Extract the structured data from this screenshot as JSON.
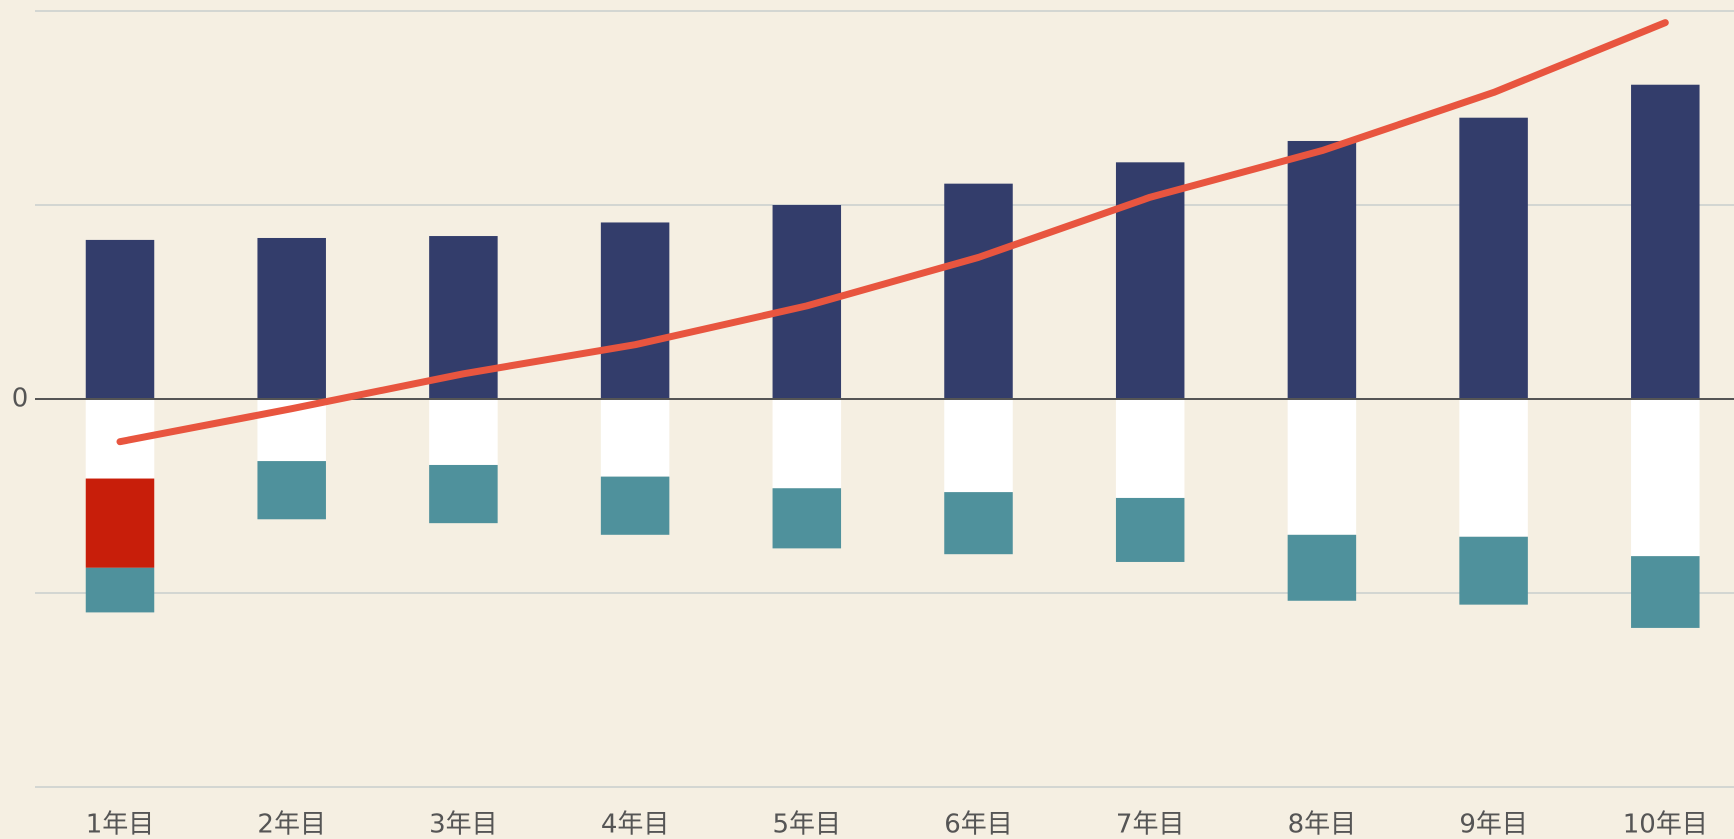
{
  "chart_data": {
    "type": "bar",
    "categories": [
      "1年目",
      "2年目",
      "3年目",
      "4年目",
      "5年目",
      "6年目",
      "7年目",
      "8年目",
      "9年目",
      "10年目"
    ],
    "series": [
      {
        "color": "#333d6b",
        "values": [
          0.82,
          0.83,
          0.84,
          0.91,
          1.0,
          1.11,
          1.22,
          1.33,
          1.45,
          1.62
        ]
      },
      {
        "color": "#ffffff",
        "values": [
          -0.41,
          -0.32,
          -0.34,
          -0.4,
          -0.46,
          -0.48,
          -0.51,
          -0.7,
          -0.71,
          -0.81
        ]
      },
      {
        "color": "#c81e0a",
        "values": [
          -0.46,
          0,
          0,
          0,
          0,
          0,
          0,
          0,
          0,
          0
        ]
      },
      {
        "color": "#4f919c",
        "values": [
          -0.23,
          -0.3,
          -0.3,
          -0.3,
          -0.31,
          -0.32,
          -0.33,
          -0.34,
          -0.35,
          -0.37
        ]
      },
      {
        "type": "line",
        "color": "#e8553f",
        "values": [
          -0.22,
          -0.05,
          0.13,
          0.28,
          0.48,
          0.73,
          1.04,
          1.28,
          1.58,
          1.94
        ]
      }
    ],
    "ylim": [
      -2,
      2
    ],
    "yticks": [
      0
    ],
    "gridlines": [
      -2,
      -1,
      1,
      2
    ]
  }
}
